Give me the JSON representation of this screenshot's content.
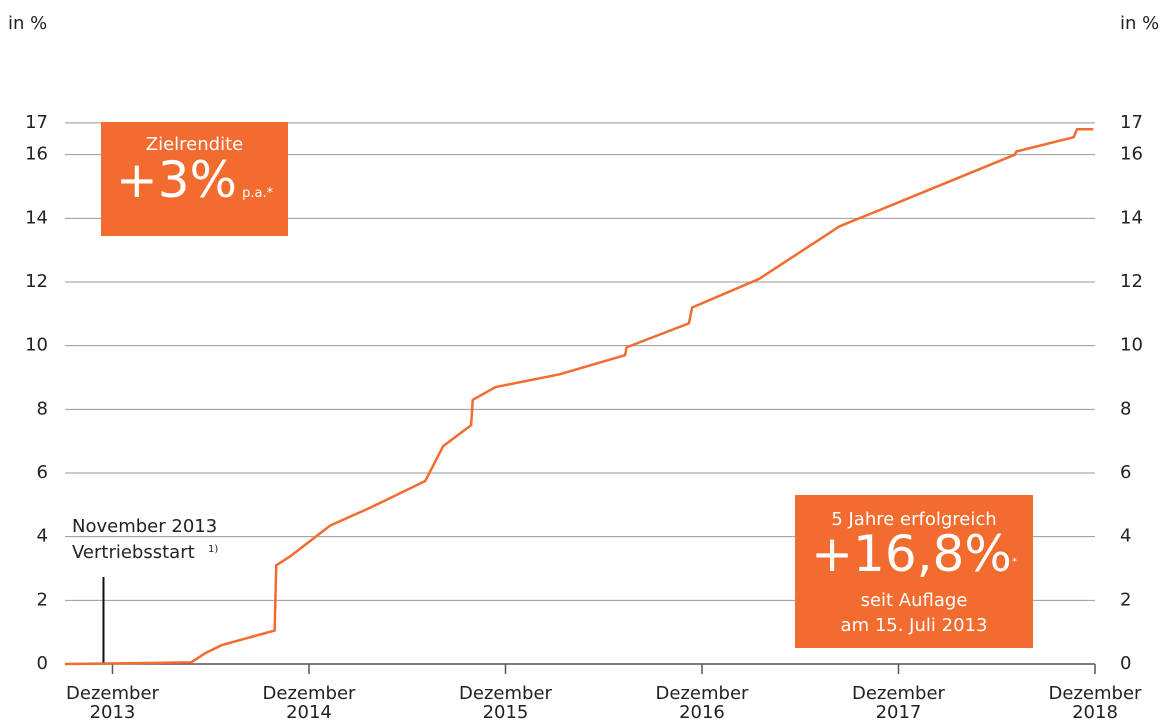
{
  "chart_data": {
    "type": "line",
    "y_label_left": "in %",
    "y_label_right": "in %",
    "x": [
      -2.9,
      4.8,
      5.7,
      6.7,
      9.9,
      10.0,
      10.9,
      13.3,
      15.7,
      19.1,
      20.2,
      21.9,
      22.0,
      23.4,
      27.3,
      31.3,
      31.4,
      35.2,
      35.4,
      39.5,
      44.4,
      46.8,
      55.1,
      55.2,
      58.7,
      58.9,
      59.9
    ],
    "values": [
      0,
      0.05,
      0.35,
      0.6,
      1.05,
      3.1,
      3.4,
      4.35,
      4.9,
      5.75,
      6.85,
      7.5,
      8.3,
      8.7,
      9.1,
      9.7,
      9.95,
      10.7,
      11.2,
      12.1,
      13.75,
      14.25,
      16.0,
      16.1,
      16.55,
      16.8,
      16.8
    ],
    "color": "#f26b2f",
    "xlim": [
      -2.9,
      60
    ],
    "xticks": [
      {
        "value": 0,
        "label": "Dezember 2013"
      },
      {
        "value": 12,
        "label": "Dezember 2014"
      },
      {
        "value": 24,
        "label": "Dezember 2015"
      },
      {
        "value": 36,
        "label": "Dezember 2016"
      },
      {
        "value": 48,
        "label": "Dezember 2017"
      },
      {
        "value": 60,
        "label": "Dezember 2018"
      }
    ],
    "ylim": [
      0,
      18
    ],
    "yticks": [
      0,
      2,
      4,
      6,
      8,
      10,
      12,
      14,
      16,
      17
    ],
    "grid": true,
    "marker": {
      "x": -0.55,
      "label": "November 2013",
      "sublabel": "Vertriebsstart",
      "footnote": "1)"
    },
    "box_target": {
      "title": "Zielrendite",
      "value": "+3%",
      "suffix": "p.a.*"
    },
    "box_result": {
      "title": "5 Jahre erfolgreich",
      "value": "+16,8%",
      "star": "*",
      "line1": "seit Auflage",
      "line2": "am 15. Juli 2013"
    }
  }
}
